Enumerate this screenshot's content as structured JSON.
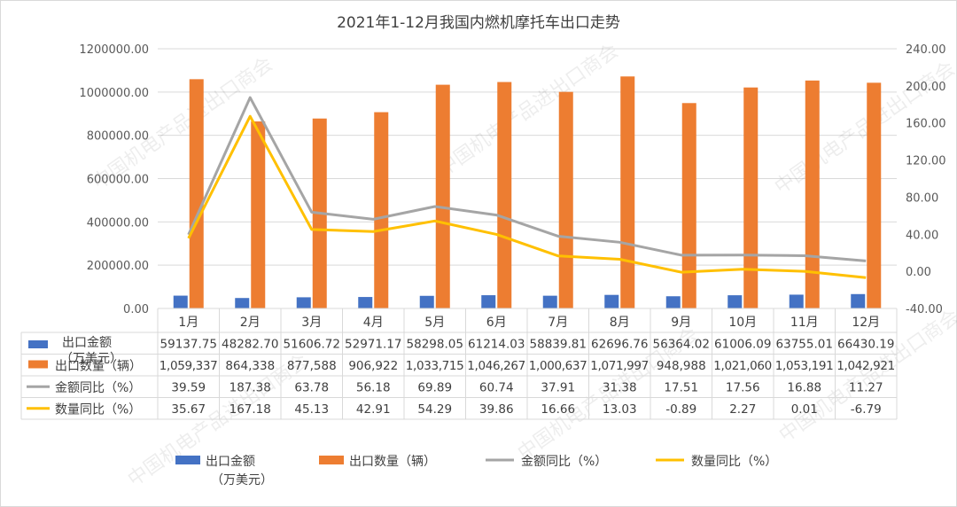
{
  "watermark": "中国机电产品进出口商会",
  "chart_data": {
    "type": "bar+line",
    "title": "2021年1-12月我国内燃机摩托车出口走势",
    "categories": [
      "1月",
      "2月",
      "3月",
      "4月",
      "5月",
      "6月",
      "7月",
      "8月",
      "9月",
      "10月",
      "11月",
      "12月"
    ],
    "ylim_left": [
      0,
      1200000
    ],
    "ylim_right": [
      -40,
      240
    ],
    "left_ticks": [
      "0.00",
      "200000.00",
      "400000.00",
      "600000.00",
      "800000.00",
      "1000000.00",
      "1200000.00"
    ],
    "right_ticks": [
      "-40.00",
      "0.00",
      "40.00",
      "80.00",
      "120.00",
      "160.00",
      "200.00",
      "240.00"
    ],
    "series": [
      {
        "name": "出口金额",
        "name_line2": "（万美元）",
        "type": "bar",
        "axis": "left",
        "color": "#4472C4",
        "values": [
          59137.75,
          48282.7,
          51606.72,
          52971.17,
          58298.05,
          61214.03,
          58839.81,
          62696.76,
          56364.02,
          61006.09,
          63755.01,
          66430.19
        ],
        "labels": [
          "59137.75",
          "48282.70",
          "51606.72",
          "52971.17",
          "58298.05",
          "61214.03",
          "58839.81",
          "62696.76",
          "56364.02",
          "61006.09",
          "63755.01",
          "66430.19"
        ]
      },
      {
        "name": "出口数量（辆）",
        "type": "bar",
        "axis": "left",
        "color": "#ED7D31",
        "values": [
          1059337,
          864338,
          877588,
          906922,
          1033715,
          1046267,
          1000637,
          1071997,
          948988,
          1021060,
          1053191,
          1042921
        ],
        "labels": [
          "1,059,337",
          "864,338",
          "877,588",
          "906,922",
          "1,033,715",
          "1,046,267",
          "1,000,637",
          "1,071,997",
          "948,988",
          "1,021,060",
          "1,053,191",
          "1,042,921"
        ]
      },
      {
        "name": "金额同比（%）",
        "type": "line",
        "axis": "right",
        "color": "#A5A5A5",
        "values": [
          39.59,
          187.38,
          63.78,
          56.18,
          69.89,
          60.74,
          37.91,
          31.38,
          17.51,
          17.56,
          16.88,
          11.27
        ],
        "labels": [
          "39.59",
          "187.38",
          "63.78",
          "56.18",
          "69.89",
          "60.74",
          "37.91",
          "31.38",
          "17.51",
          "17.56",
          "16.88",
          "11.27"
        ]
      },
      {
        "name": "数量同比（%）",
        "type": "line",
        "axis": "right",
        "color": "#FFC000",
        "values": [
          35.67,
          167.18,
          45.13,
          42.91,
          54.29,
          39.86,
          16.66,
          13.03,
          -0.89,
          2.27,
          0.01,
          -6.79
        ],
        "labels": [
          "35.67",
          "167.18",
          "45.13",
          "42.91",
          "54.29",
          "39.86",
          "16.66",
          "13.03",
          "-0.89",
          "2.27",
          "0.01",
          "-6.79"
        ]
      }
    ],
    "legend_position": "bottom",
    "data_table": true,
    "gridlines": true
  }
}
